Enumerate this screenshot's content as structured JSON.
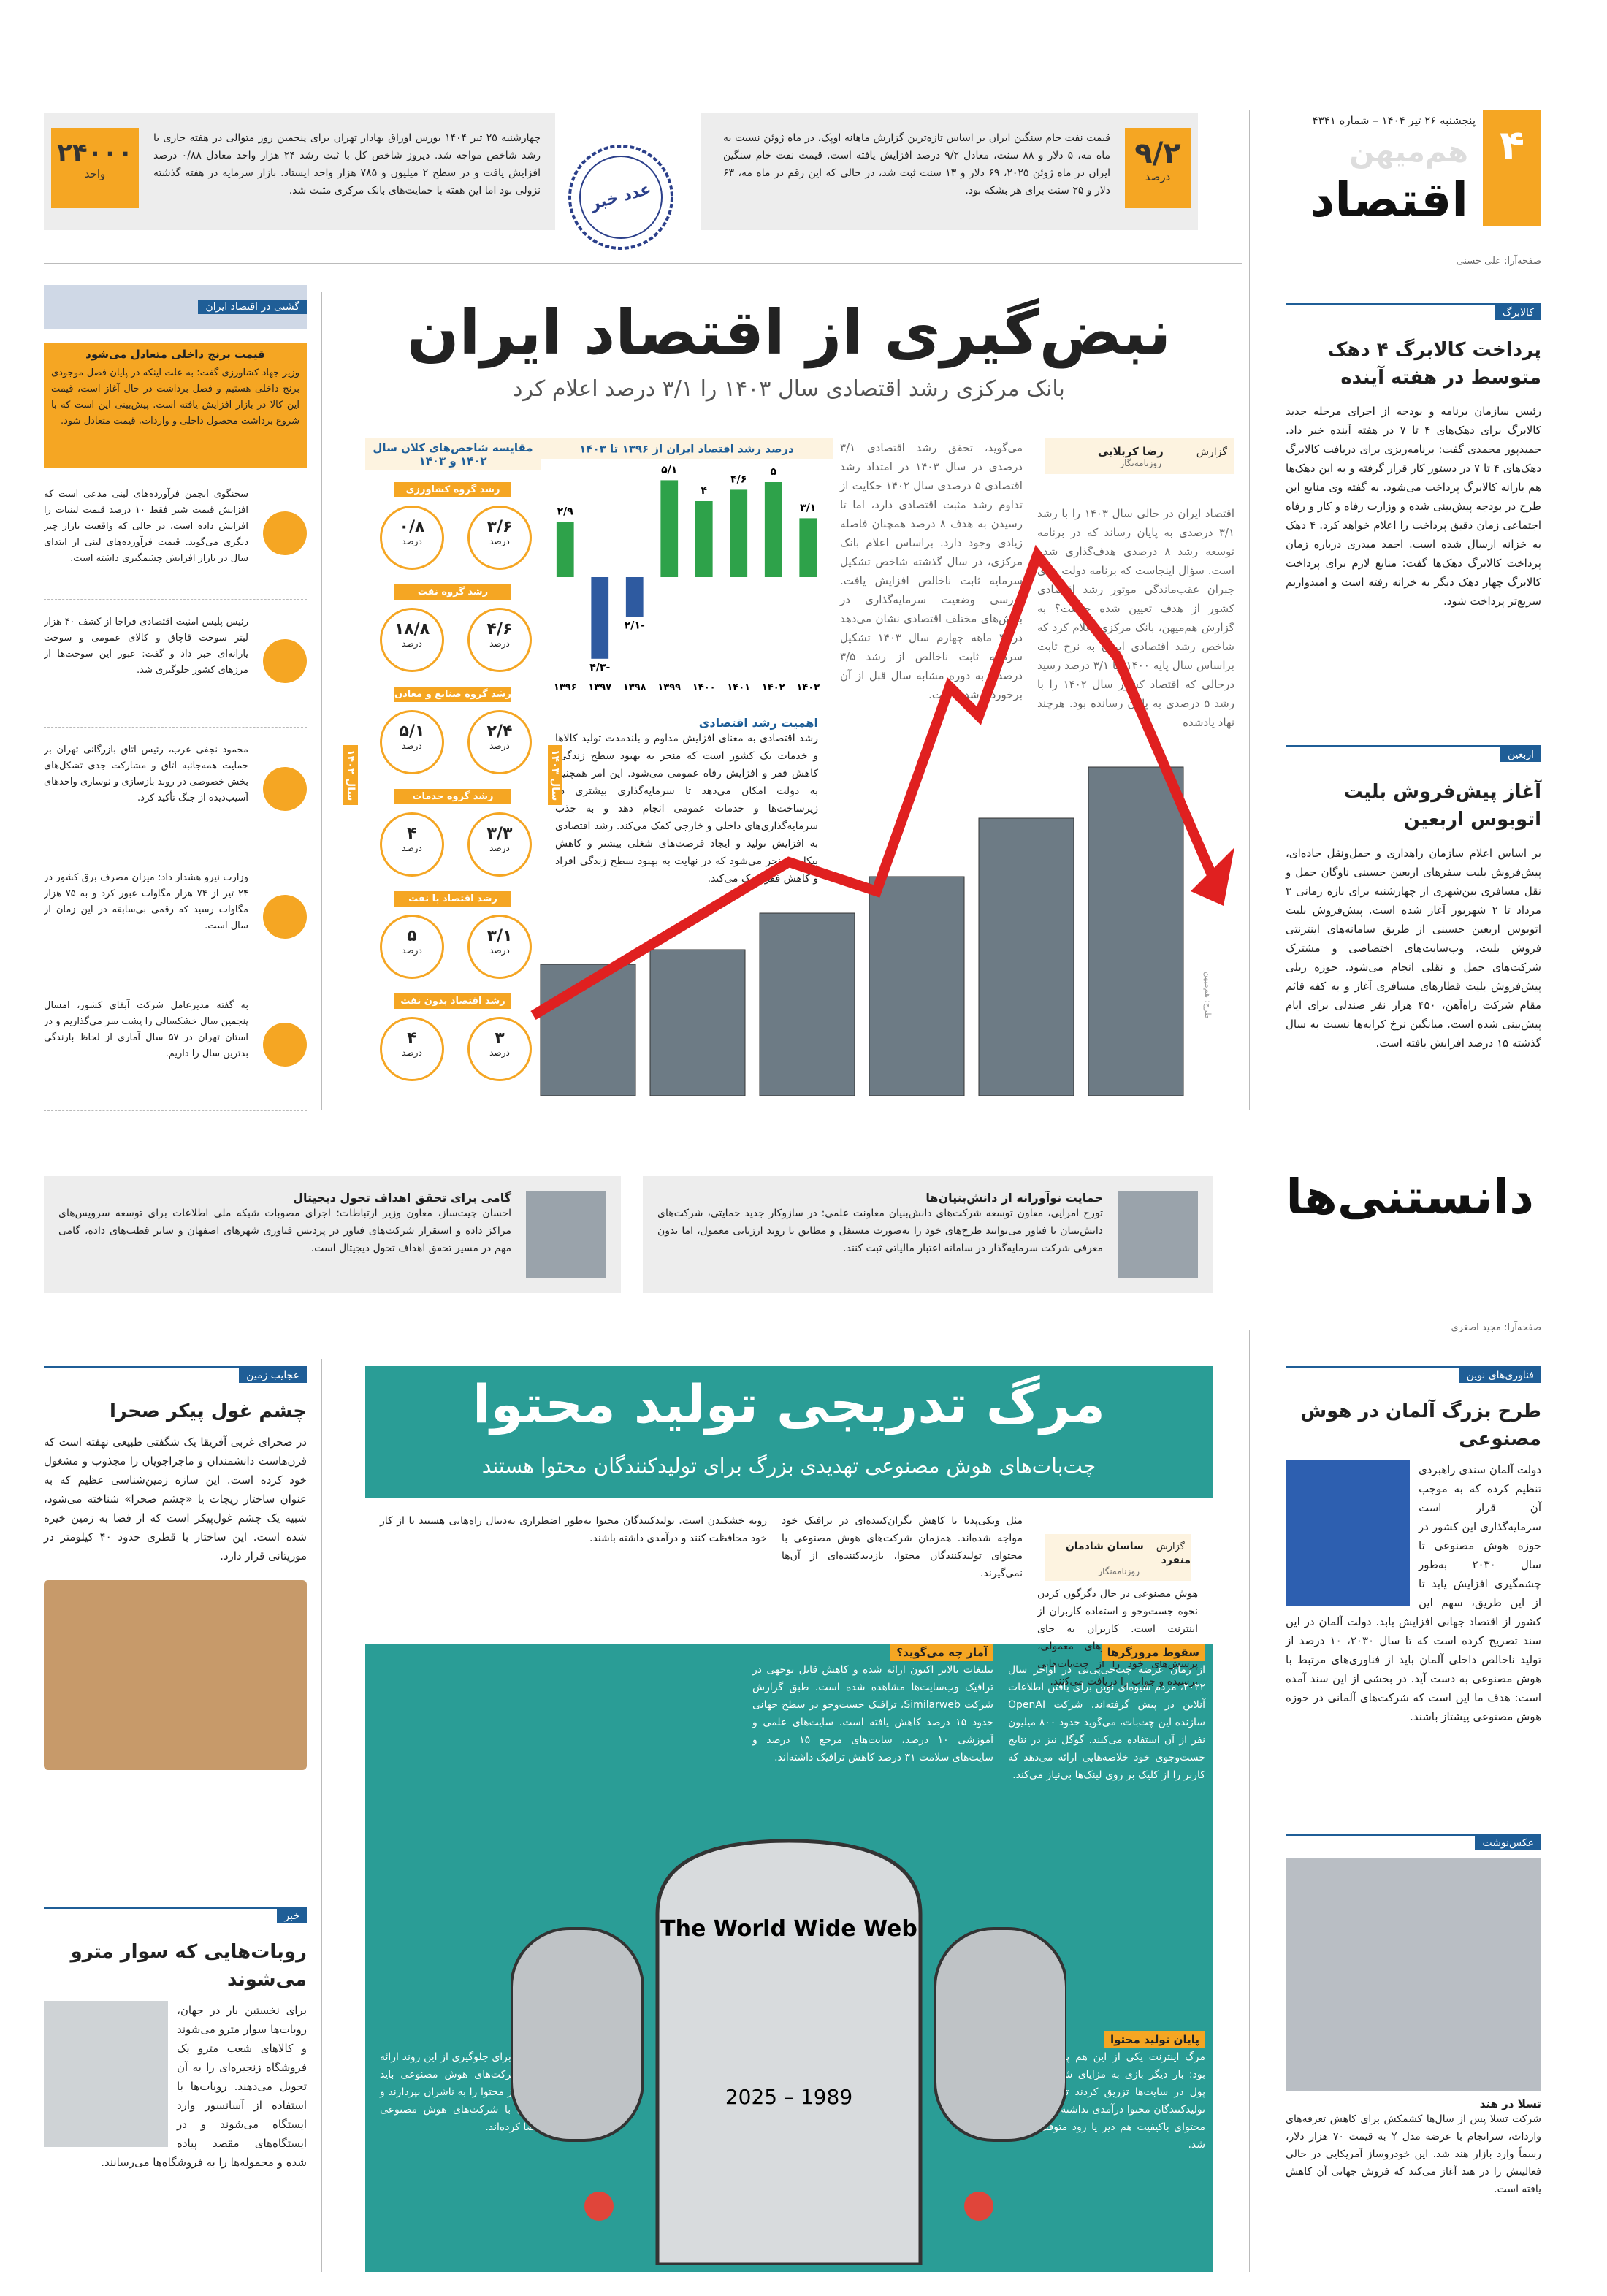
{
  "header": {
    "page_number": "۴",
    "date": "پنجشنبه ۲۶ تیر ۱۴۰۴ – شماره ۴۳۴۱",
    "paper": "هم‌میهن",
    "section": "اقتصاد"
  },
  "stats": [
    {
      "value": "۹/۲",
      "unit": "درصد",
      "text": "قیمت نفت خام سنگین ایران بر اساس تازه‌ترین گزارش ماهانه اوپک، در ماه ژوئن نسبت به ماه مه، ۵ دلار و ۸۸ سنت، معادل ۹/۲ درصد افزایش یافته است. قیمت نفت خام سنگین ایران در ماه ژوئن ۲۰۲۵، ۶۹ دلار و ۱۳ سنت ثبت شد، در حالی که این رقم در ماه مه، ۶۳ دلار و ۲۵ سنت برای هر بشکه بود."
    },
    {
      "value": "۲۴۰۰۰",
      "unit": "واحد",
      "text": "چهارشنبه ۲۵ تیر ۱۴۰۴ بورس اوراق بهادار تهران برای پنجمین روز متوالی در هفته جاری با رشد شاخص مواجه شد. دیروز شاخص کل با ثبت رشد ۲۴ هزار واحد معادل ۰/۸۸ درصد افزایش یافت و در سطح ۲ میلیون و ۷۸۵ هزار واحد ایستاد. بازار سرمایه در هفته گذشته نزولی بود اما این هفته با حمایت‌های بانک مرکزی مثبت شد."
    }
  ],
  "stamp": "عدد خبر",
  "right_column": {
    "designer": "صفحه‌آرا: علی حسنی",
    "stories": [
      {
        "kicker": "کالابرگ",
        "headline": "پرداخت کالابرگ ۴ دهک متوسط در هفته آینده",
        "body": "رئیس سازمان برنامه و بودجه از اجرای مرحله جدید کالابرگ برای دهک‌های ۴ تا ۷ در هفته آینده خبر داد. حمیدپور محمدی گفت: برنامه‌ریزی برای دریافت کالابرگ دهک‌های ۴ تا ۷ در دستور کار قرار گرفته و به این دهک‌ها هم یارانه کالابرگ پرداخت می‌شود. به گفته وی منابع این طرح در بودجه پیش‌بینی شده و وزارت رفاه و کار و رفاه اجتماعی زمان دقیق پرداخت را اعلام خواهد کرد. ۴ دهک به خزانه ارسال شده است. احمد میدری درباره زمان پرداخت کالابرگ دهک‌ها گفت: منابع لازم برای پرداخت کالابرگ چهار دهک دیگر به خزانه رفته است و امیدواریم سریع‌تر پرداخت شود."
      },
      {
        "kicker": "اربعین",
        "headline": "آغاز پیش‌فروش بلیت اتوبوس اربعین",
        "body": "بر اساس اعلام سازمان راهداری و حمل‌ونقل جاده‌ای، پیش‌فروش بلیت سفرهای اربعین حسینی ناوگان حمل و نقل مسافری بین‌شهری از چهارشنبه برای بازه زمانی ۳ مرداد تا ۲ شهریور آغاز شده است. پیش‌فروش بلیت اتوبوس اربعین حسینی از طریق سامانه‌های اینترنتی فروش بلیت، وب‌سایت‌های اختصاصی و مشترک شرکت‌های حمل و نقلی انجام می‌شود. حوزه ریلی پیش‌فروش بلیت قطارهای مسافری آغاز و به کفه قائم مقام شرکت راه‌آهن، ۴۵۰ هزار نفر صندلی برای ایام پیش‌بینی شده است. میانگین نرخ کرایه‌ها نسبت به سال گذشته ۱۵ درصد افزایش یافته است."
      }
    ]
  },
  "main_story": {
    "title": "نبض‌گیری از اقتصاد ایران",
    "subtitle": "بانک مرکزی رشد اقتصادی سال ۱۴۰۳ را ۳/۱ درصد اعلام کرد",
    "kicker": "گزارش",
    "author": "رضا کربلایی",
    "role": "روزنامه‌نگار",
    "body": [
      "اقتصاد ایران در حالی سال ۱۴۰۳ را با رشد ۳/۱ درصدی به پایان رساند که در برنامه توسعه رشد ۸ درصدی هدف‌گذاری شده است. سؤال اینجاست که برنامه دولت برای جبران عقب‌ماندگی موتور رشد اقتصادی کشور از هدف تعیین شده چیست؟ به گزارش هم‌میهن، بانک مرکزی اعلام کرد که شاخص رشد اقتصادی ایران به نرخ ثابت براساس سال پایه ۱۴۰۰، با ۳/۱ درصد رسید درحالی که اقتصاد کشور سال ۱۴۰۲ را با رشد ۵ درصدی به پایان رسانده بود. هرچند نهاد یادشده",
      "می‌گوید، تحقق رشد اقتصادی ۳/۱ درصدی در سال ۱۴۰۳ در امتداد رشد اقتصادی ۵ درصدی سال ۱۴۰۲ حکایت از تداوم رشد مثبت اقتصادی دارد، اما تا رسیدن به هدف ۸ درصد همچنان فاصله زیادی وجود دارد. براساس اعلام بانک مرکزی، در سال گذشته شاخص تشکیل سرمایه ثابت ناخالص افزایش یافت. بررسی وضعیت سرمایه‌گذاری در بخش‌های مختلف اقتصادی نشان می‌دهد در ۳ ماهه چهارم سال ۱۴۰۳ تشکیل سرمایه ثابت ناخالص از رشد ۳/۵ درصدی به دوره مشابه سال قبل از آن برخوردار شده است."
    ],
    "box_title": "اهمیت رشد اقتصادی",
    "box_body": "رشد اقتصادی به معنای افزایش مداوم و بلندمدت تولید کالاها و خدمات یک کشور است که منجر به بهبود سطح زندگی، کاهش فقر و افزایش رفاه عمومی می‌شود. این امر همچنین به دولت امکان می‌دهد تا سرمایه‌گذاری بیشتری در زیرساخت‌ها و خدمات عمومی انجام دهد و به جذب سرمایه‌گذاری‌های داخلی و خارجی کمک می‌کند. رشد اقتصادی به افزایش تولید و ایجاد فرصت‌های شغلی بیشتر و کاهش بیکاری منجر می‌شود که در نهایت به بهبود سطح زندگی افراد و کاهش فقر کمک می‌کند.",
    "photo_credit": "طرح: هم‌میهن"
  },
  "growth_chart": {
    "type": "bar",
    "title": "درصد رشد اقتصاد ایران از ۱۳۹۶ تا ۱۴۰۳",
    "categories": [
      "۱۳۹۶",
      "۱۳۹۷",
      "۱۳۹۸",
      "۱۳۹۹",
      "۱۴۰۰",
      "۱۴۰۱",
      "۱۴۰۲",
      "۱۴۰۳"
    ],
    "values": [
      2.9,
      -4.3,
      -2.1,
      5.1,
      4,
      4.6,
      5,
      3.1
    ],
    "value_labels": [
      "۲/۹",
      "-۴/۳",
      "-۲/۱",
      "۵/۱",
      "۴",
      "۴/۶",
      "۵",
      "۳/۱"
    ],
    "colors": {
      "positive": "#2ea24a",
      "negative": "#2e5aa0"
    }
  },
  "comparison": {
    "title": "مقایسه شاخص‌های کلان سال ۱۴۰۲ و ۱۴۰۳",
    "year_labels": [
      "سال ۱۴۰۲",
      "سال ۱۴۰۳"
    ],
    "unit": "درصد",
    "rows": [
      {
        "label": "رشد گروه کشاورزی",
        "values": [
          "۰/۸",
          "۳/۶"
        ]
      },
      {
        "label": "رشد گروه نفت",
        "values": [
          "۱۸/۸",
          "۴/۶"
        ]
      },
      {
        "label": "رشد گروه صنایع و معادن",
        "values": [
          "۵/۱",
          "۲/۴"
        ]
      },
      {
        "label": "رشد گروه خدمات",
        "values": [
          "۴",
          "۳/۳"
        ]
      },
      {
        "label": "رشد اقتصاد با نفت",
        "values": [
          "۵",
          "۳/۱"
        ]
      },
      {
        "label": "رشد اقتصاد بدون نفت",
        "values": [
          "۴",
          "۳"
        ]
      }
    ]
  },
  "digest": {
    "kicker": "گشتی در اقتصاد ایران",
    "lead_title": "قیمت برنج داخلی متعادل می‌شود",
    "lead_body": "وزیر جهاد کشاورزی گفت: به علت اینکه در پایان فصل موجودی برنج داخلی هستیم و فصل برداشت در حال آغاز است، قیمت این کالا در بازار افزایش یافته است. پیش‌بینی این است که با شروع برداشت محصول داخلی و واردات، قیمت متعادل شود.",
    "items": [
      "سخنگوی انجمن فرآورده‌های لبنی مدعی است که افزایش قیمت شیر فقط ۱۰ درصد قیمت لبنیات را افزایش داده است. در حالی که واقعیت بازار چیز دیگری می‌گوید. قیمت فرآورده‌های لبنی از ابتدای سال در بازار افزایش چشمگیری داشته است.",
      "رئیس پلیس امنیت اقتصادی فراجا از کشف ۴۰ هزار لیتر سوخت قاچاق و کالای عمومی و سوخت یارانه‌ای خبر داد و گفت: عبور این سوخت‌ها از مرزهای کشور جلوگیری شد.",
      "محمود نجفی عرب، رئیس اتاق بازرگانی تهران بر حمایت همه‌جانبه اتاق و مشارکت جدی تشکل‌های بخش خصوصی در روند بازسازی و نوسازی واحدهای آسیب‌دیده از جنگ تأکید کرد.",
      "وزارت نیرو هشدار داد: میزان مصرف برق کشور در ۲۴ تیر از ۷۴ هزار مگاوات عبور کرد و به ۷۵ هزار مگاوات رسید که رقمی بی‌سابقه در این زمان از سال است.",
      "به گفته مدیرعامل شرکت آبفای کشور، امسال پنجمین سال خشکسالی را پشت سر می‌گذاریم و در استان تهران در ۵۷ سال آماری از لحاظ بارندگی بدترین سال را داریم."
    ]
  },
  "strip": [
    {
      "title": "حمایت نوآورانه از دانش‌بنیان‌ها",
      "body": "تورج امرایی، معاون توسعه شرکت‌های دانش‌بنیان معاونت علمی: در سازوکار جدید حمایتی، شرکت‌های دانش‌بنیان با فناور می‌توانند طرح‌های خود را به‌صورت مستقل و مطابق با روند ارزیابی معمول، اما بدون معرفی شرکت سرمایه‌گذار در سامانه اعتبار مالیاتی ثبت کنند."
    },
    {
      "title": "گامی برای تحقق اهداف تحول دیجیتال",
      "body": "احسان چیت‌ساز، معاون وزیر ارتباطات: اجرای مصوبات شبکه ملی اطلاعات برای توسعه سرویس‌های مراکز داده و استقرار شرکت‌های فناور در پردیس فناوری شهرهای اصفهان و سایر قطب‌های داده، گامی مهم در مسیر تحقق اهداف تحول دیجیتال است."
    }
  ],
  "science": {
    "section": "دانستنی‌ها",
    "designer": "صفحه‌آرا: مجید اصغری",
    "ai_story": {
      "kicker": "فناوری‌های نوین",
      "headline": "طرح بزرگ آلمان در هوش مصنوعی",
      "body": "دولت آلمان سندی راهبردی تنظیم کرده که به موجب آن قرار است سرمایه‌گذاری این کشور در حوزه هوش مصنوعی تا سال ۲۰۳۰ به‌طور چشمگیری افزایش یابد تا از این طریق، سهم این کشور از اقتصاد جهانی افزایش یابد. دولت آلمان در این سند تصریح کرده است که تا سال ۲۰۳۰، ۱۰ درصد از تولید ناخالص داخلی آلمان باید از فناوری‌های مرتبط با هوش مصنوعی به دست آید. در بخشی از این سند آمده است: هدف ما این است که شرکت‌های آلمانی در حوزه هوش مصنوعی پیشتاز باشند."
    },
    "photo": {
      "kicker": "عکس‌نوشت",
      "title": "تسلا در هند",
      "body": "شرکت تسلا پس از سال‌ها کشمکش برای کاهش تعرفه‌های واردات، سرانجام با عرضه مدل Y به قیمت ۷۰ هزار دلار، رسماً وارد بازار هند شد. این خودروساز آمریکایی در حالی فعالیتش را در هند آغاز می‌کند که فروش جهانی آن کاهش یافته است."
    }
  },
  "ai_story": {
    "title": "مرگ تدریجی تولید محتوا",
    "subtitle": "چت‌بات‌های هوش مصنوعی تهدیدی بزرگ برای تولیدکنندگان محتوا هستند",
    "kicker": "گزارش",
    "author": "ساسان شادمان منفرد",
    "role": "روزنامه‌نگار",
    "lead": [
      "هوش مصنوعی در حال دگرگون کردن نحوه جست‌وجو و استفاده کاربران از اینترنت است. کاربران به جای جست‌وجو در موتورهای معمولی، پرسش‌های خود را از چت‌بات‌هایی پرسیده و جواب را دریافت می‌کنند.",
      "مثل ویکی‌پدیا با کاهش نگران‌کننده‌ای در ترافیک خود مواجه شده‌اند. همزمان شرکت‌های هوش مصنوعی با محتوای تولیدکنندگان محتوا، بازدیدکننده‌ای از آن‌ها نمی‌گیرند.",
      "روبه خشکیدن است. تولیدکنندگان محتوا به‌طور اضطراری به‌دنبال راه‌هایی هستند تا از کار خود محافظت کنند و درآمدی داشته باشند."
    ],
    "sections": [
      {
        "title": "سقوط مرورگرها",
        "body": "از زمان عرضه چت‌جی‌پی‌تی در اواخر سال ۲۰۲۲، مردم شیوه‌ای نوین برای یافتن اطلاعات آنلاین در پیش گرفته‌اند. شرکت OpenAI سازنده این چت‌بات، می‌گوید حدود ۸۰۰ میلیون نفر از آن استفاده می‌کنند. گوگل نیز در نتایج جست‌وجوی خود خلاصه‌هایی ارائه می‌دهد که کاربر را از کلیک بر روی لینک‌ها بی‌نیاز می‌کند."
      },
      {
        "title": "آمار چه می‌گوید؟",
        "body": "تبلیغات بالاتر اکنون ارائه شده و کاهش قابل توجهی در ترافیک وب‌سایت‌ها مشاهده شده است. طبق گزارش شرکت Similarweb، ترافیک جست‌وجو در سطح جهانی حدود ۱۵ درصد کاهش یافته است. سایت‌های علمی و آموزشی ۱۰ درصد، سایت‌های مرجع ۱۵ درصد و سایت‌های سلامت ۳۱ درصد کاهش ترافیک داشته‌اند."
      },
      {
        "title": "پایان تولید محتوا",
        "body": "مرگ اینترنت یکی از این هم پیش‌بینی شده بود: بار دیگر بازی به مزایای شرکت‌هایی که پول در سایت‌ها تزریق کردند تمام شد. اگر تولیدکنندگان محتوا درآمدی نداشته باشند، تولید محتوای باکیفیت هم دیر یا زود متوقف خواهد شد."
      },
      {
        "title": "راه‌حل",
        "body": "برخی راه‌حل‌ها برای جلوگیری از این روند ارائه شده است. شرکت‌های هوش مصنوعی باید هزینه استفاده از محتوا را به ناشران بپردازند و برخی ناشران با شرکت‌های هوش مصنوعی قرارداد امضا کرده‌اند."
      }
    ],
    "tombstone": {
      "title": "The World Wide Web",
      "years": "1989 – 2025"
    }
  },
  "left_lower": [
    {
      "kicker": "عجایب زمین",
      "headline": "چشم غول پیکر صحرا",
      "body": "در صحرای غربی آفریقا یک شگفتی طبیعی نهفته است که قرن‌هاست دانشمندان و ماجراجویان را مجذوب و مشغول خود کرده است. این سازه زمین‌شناسی عظیم که به عنوان ساختار ریچات یا «چشم صحرا» شناخته می‌شود، شبیه یک چشم غول‌پیکر است که از فضا به زمین خیره شده است. این ساختار با قطری حدود ۴۰ کیلومتر در موریتانی قرار دارد."
    },
    {
      "kicker": "خبر",
      "headline": "روبات‌هایی که سوار مترو می‌شوند",
      "body": "برای نخستین بار در جهان، روبات‌ها سوار مترو می‌شوند و کالاهای شعب مترو یک فروشگاه زنجیره‌ای را به آن تحویل می‌دهند. روبات‌ها با استفاده از آسانسور وارد ایستگاه می‌شوند و در ایستگاه‌های مقصد پیاده شده و محموله‌ها را به فروشگاه‌ها می‌رسانند."
    }
  ]
}
